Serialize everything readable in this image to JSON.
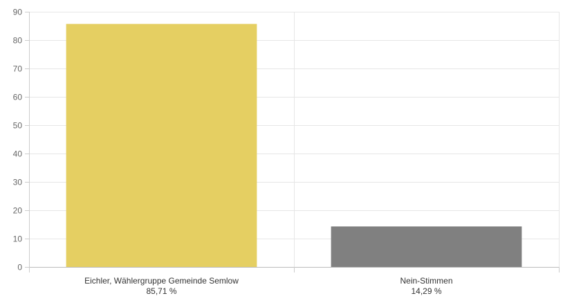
{
  "chart_data": {
    "type": "bar",
    "categories": [
      "Eichler, Wählergruppe Gemeinde Semlow",
      "Nein-Stimmen"
    ],
    "percent_labels": [
      "85,71 %",
      "14,29 %"
    ],
    "values": [
      85.71,
      14.29
    ],
    "colors": [
      "#e5cf62",
      "#808080"
    ],
    "yticks": [
      0,
      10,
      20,
      30,
      40,
      50,
      60,
      70,
      80,
      90
    ],
    "ylim": [
      0,
      90
    ],
    "grid": true,
    "title": "",
    "xlabel": "",
    "ylabel": ""
  }
}
